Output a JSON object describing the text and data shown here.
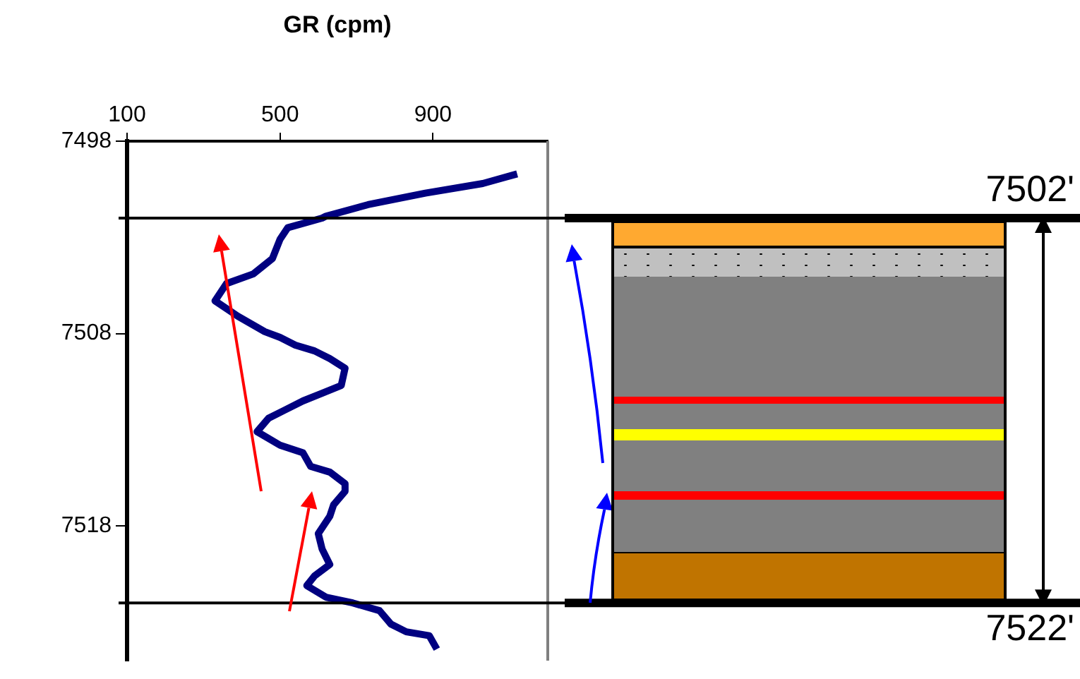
{
  "chart_data": {
    "type": "line",
    "xlabel": "GR (cpm)",
    "xlim": [
      100,
      1200
    ],
    "xticks": [
      100,
      500,
      900
    ],
    "ylim": [
      7525,
      7498
    ],
    "yticks": [
      7498,
      7508,
      7518
    ],
    "grid": false,
    "marker": "none",
    "legend": false,
    "ref_lines": [
      {
        "axis": "y",
        "value": 7502,
        "label": "7502'",
        "color": "#000000"
      },
      {
        "axis": "y",
        "value": 7522,
        "label": "7522'",
        "color": "#000000"
      }
    ],
    "series": [
      {
        "color": "#000080",
        "x": [
          1120,
          1030,
          880,
          730,
          620,
          610,
          520,
          500,
          480,
          430,
          360,
          330,
          390,
          460,
          500,
          540,
          590,
          630,
          670,
          660,
          610,
          560,
          510,
          470,
          440,
          500,
          560,
          580,
          630,
          670,
          670,
          640,
          630,
          600,
          610,
          630,
          590,
          570,
          620,
          690,
          760,
          790,
          830,
          890,
          910
        ],
        "values": [
          7499.7,
          7500.2,
          7500.7,
          7501.3,
          7501.9,
          7502.0,
          7502.5,
          7503.1,
          7504.1,
          7504.9,
          7505.4,
          7506.3,
          7507.1,
          7507.9,
          7508.2,
          7508.6,
          7508.9,
          7509.3,
          7509.8,
          7510.7,
          7511.1,
          7511.5,
          7512.0,
          7512.4,
          7513.1,
          7513.8,
          7514.2,
          7514.9,
          7515.2,
          7515.8,
          7516.2,
          7516.9,
          7517.5,
          7518.4,
          7519.2,
          7520.0,
          7520.6,
          7521.1,
          7521.7,
          7522.0,
          7522.4,
          7523.1,
          7523.5,
          7523.7,
          7524.4
        ]
      }
    ]
  }
}
